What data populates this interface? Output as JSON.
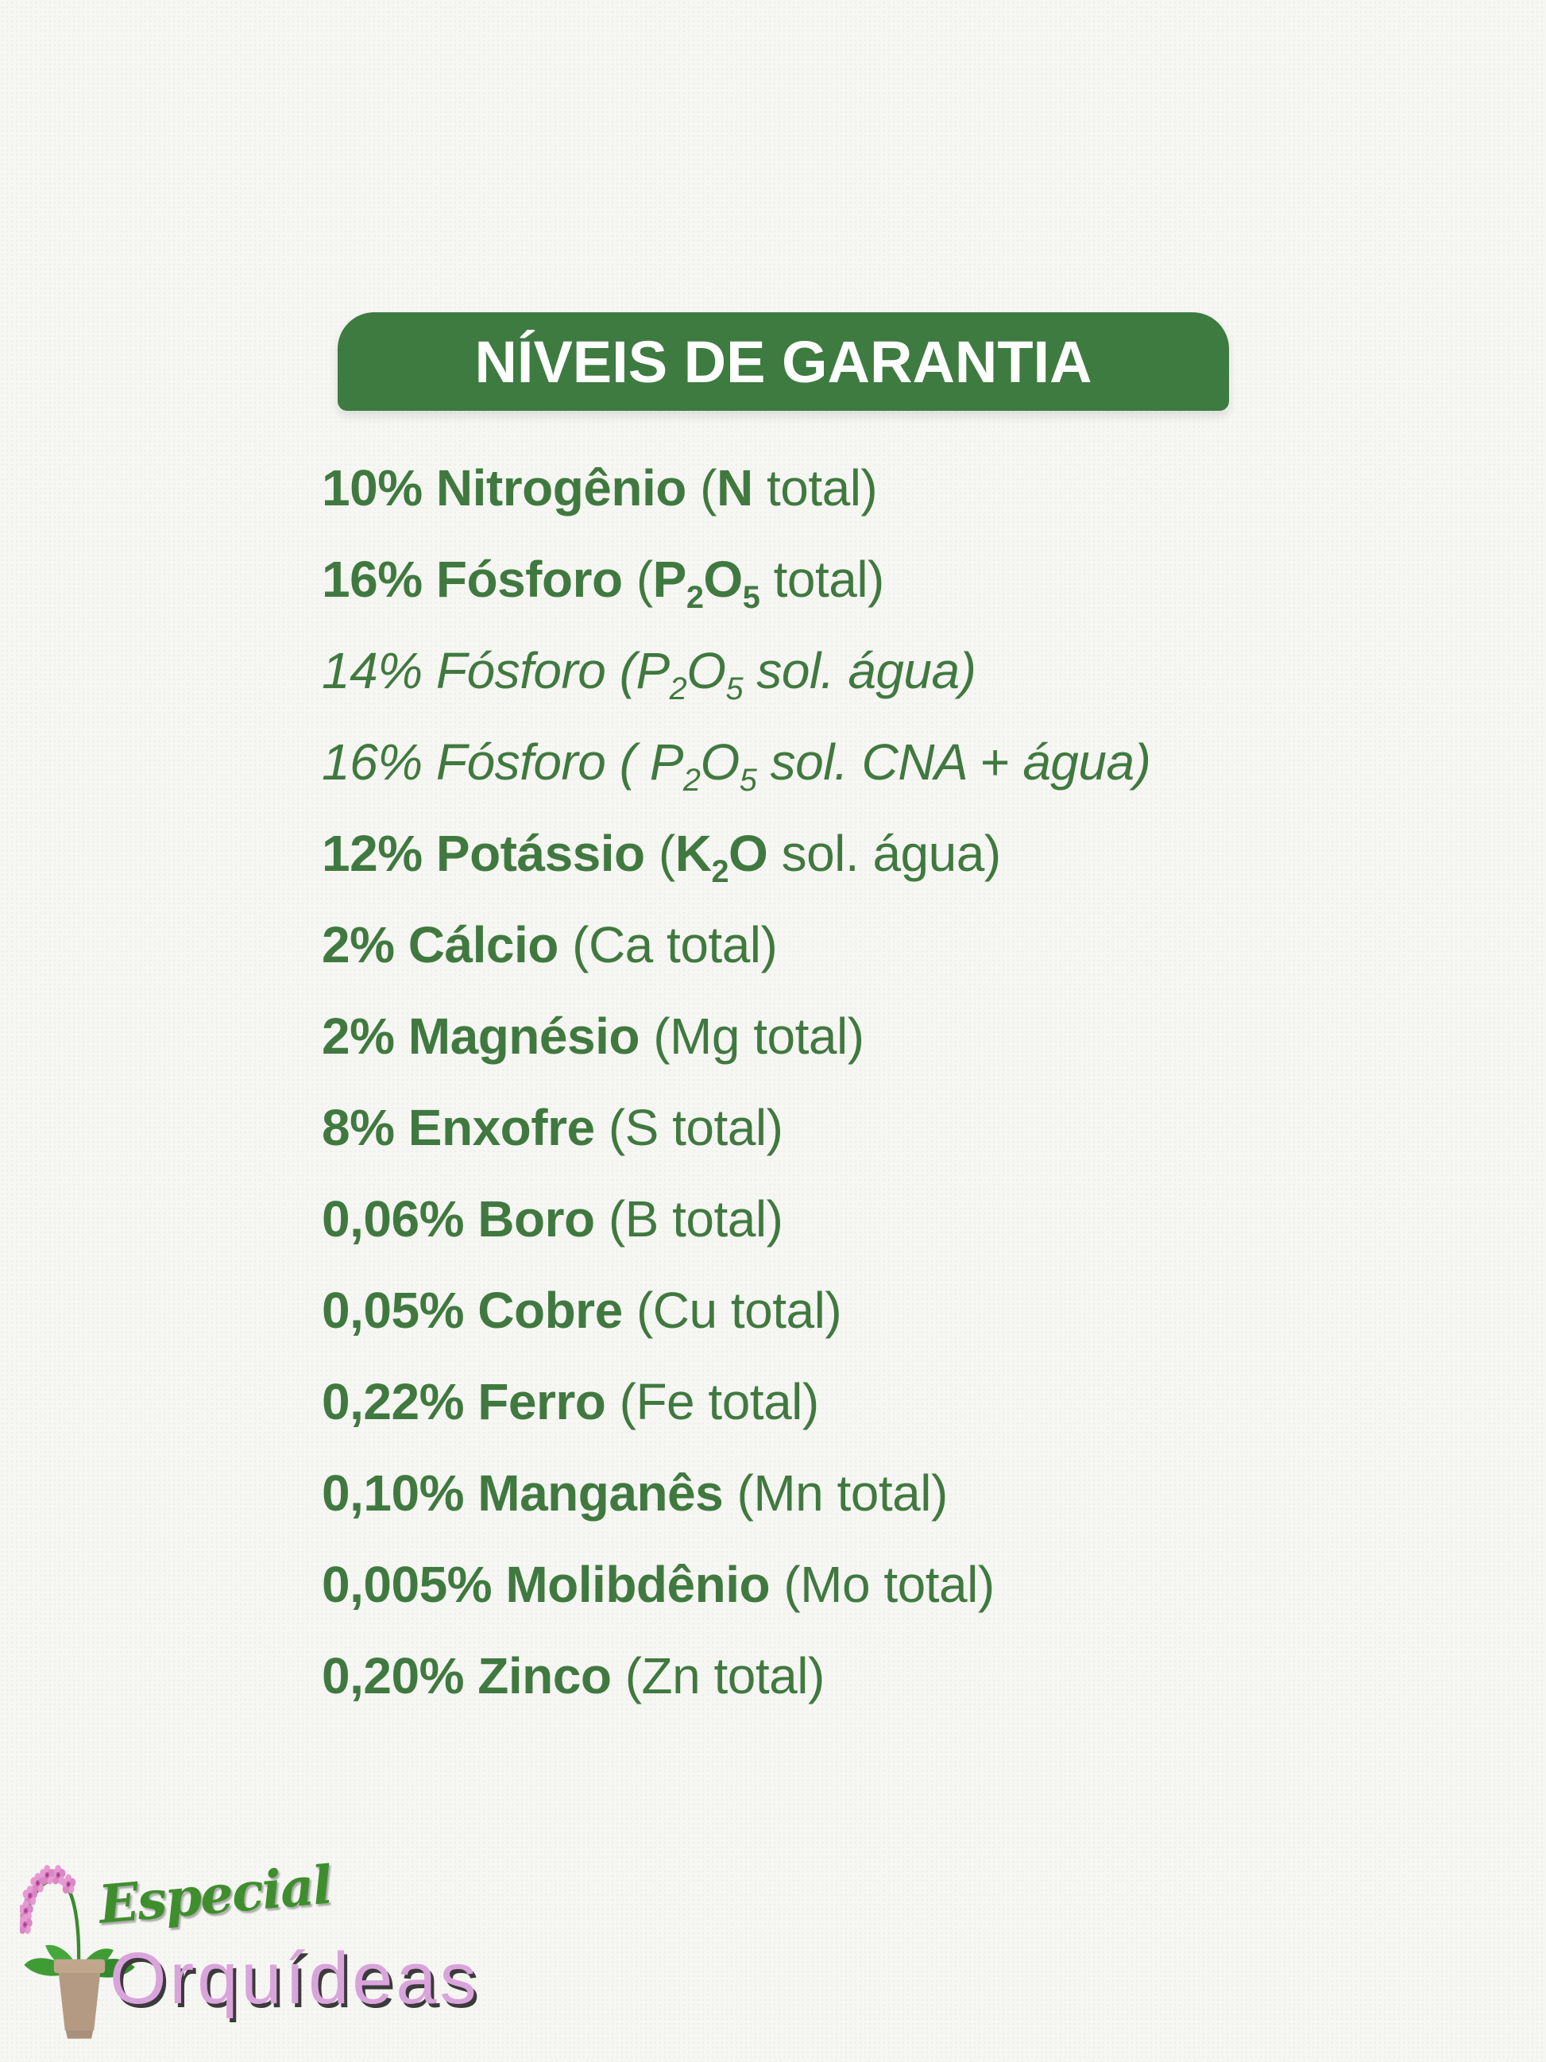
{
  "page": {
    "type": "fertilizer-label",
    "language": "pt-BR"
  },
  "header": {
    "title": "NÍVEIS DE GARANTIA"
  },
  "colors": {
    "background": "#f6f6f3",
    "banner_green": "#3e7b40",
    "banner_text": "#ffffff",
    "text_green": "#40793f",
    "logo_script_green": "#3f8e2e",
    "logo_pink": "#d9a4db",
    "logo_shadow": "#3b3b3b"
  },
  "nutrients": {
    "lines": [
      {
        "segments": [
          {
            "t": "10% Nitrogênio ",
            "b": true
          },
          {
            "t": "("
          },
          {
            "t": "N",
            "b": true
          },
          {
            "t": " total)"
          }
        ]
      },
      {
        "segments": [
          {
            "t": "16% Fósforo ",
            "b": true
          },
          {
            "t": "("
          },
          {
            "t": "P",
            "b": true
          },
          {
            "t": "2",
            "b": true,
            "s": true
          },
          {
            "t": "O",
            "b": true
          },
          {
            "t": "5",
            "b": true,
            "s": true
          },
          {
            "t": " total)"
          }
        ]
      },
      {
        "segments": [
          {
            "t": "14% Fósforo (P",
            "i": true
          },
          {
            "t": "2",
            "i": true,
            "s": true
          },
          {
            "t": "O",
            "i": true
          },
          {
            "t": "5",
            "i": true,
            "s": true
          },
          {
            "t": " sol. água)",
            "i": true
          }
        ]
      },
      {
        "segments": [
          {
            "t": "16% Fósforo ( P",
            "i": true
          },
          {
            "t": "2",
            "i": true,
            "s": true
          },
          {
            "t": "O",
            "i": true
          },
          {
            "t": "5",
            "i": true,
            "s": true
          },
          {
            "t": " sol. CNA + água)",
            "i": true
          }
        ]
      },
      {
        "segments": [
          {
            "t": "12% Potássio ",
            "b": true
          },
          {
            "t": "("
          },
          {
            "t": "K",
            "b": true
          },
          {
            "t": "2",
            "b": true,
            "s": true
          },
          {
            "t": "O",
            "b": true
          },
          {
            "t": " sol. água)"
          }
        ]
      },
      {
        "segments": [
          {
            "t": "2% Cálcio",
            "b": true
          },
          {
            "t": " (Ca total)"
          }
        ]
      },
      {
        "segments": [
          {
            "t": "2% Magnésio",
            "b": true
          },
          {
            "t": " (Mg total)"
          }
        ]
      },
      {
        "segments": [
          {
            "t": "8% Enxofre",
            "b": true
          },
          {
            "t": " (S total)"
          }
        ]
      },
      {
        "segments": [
          {
            "t": "0,06% Boro",
            "b": true
          },
          {
            "t": " (B total)"
          }
        ]
      },
      {
        "segments": [
          {
            "t": "0,05% Cobre",
            "b": true
          },
          {
            "t": " (Cu total)"
          }
        ]
      },
      {
        "segments": [
          {
            "t": "0,22% Ferro",
            "b": true
          },
          {
            "t": " (Fe total)"
          }
        ]
      },
      {
        "segments": [
          {
            "t": "0,10% Manganês",
            "b": true
          },
          {
            "t": " (Mn total)"
          }
        ]
      },
      {
        "segments": [
          {
            "t": "0,005% Molibdênio",
            "b": true
          },
          {
            "t": " (Mo total)"
          }
        ]
      },
      {
        "segments": [
          {
            "t": "0,20% Zinco",
            "b": true
          },
          {
            "t": " (Zn total)"
          }
        ]
      }
    ]
  },
  "logo": {
    "script_word": "Especial",
    "main_word": "Orquídeas",
    "icon": "orchid-pot-icon"
  }
}
